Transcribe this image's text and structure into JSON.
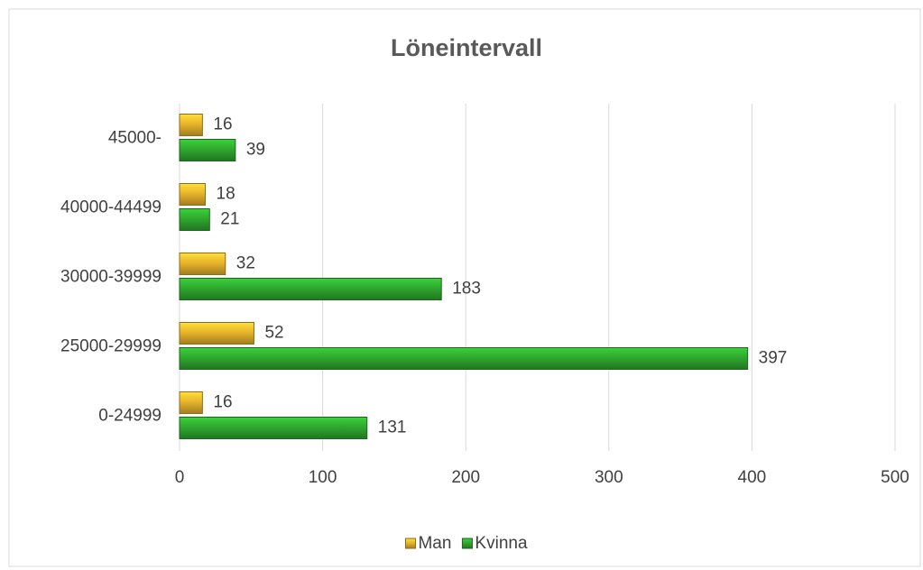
{
  "chart_data": {
    "type": "bar",
    "orientation": "horizontal",
    "title": "Löneintervall",
    "categories": [
      "45000-",
      "40000-44499",
      "30000-39999",
      "25000-29999",
      "0-24999"
    ],
    "series": [
      {
        "name": "Man",
        "color": "#e8b42c",
        "values": [
          16,
          18,
          32,
          52,
          16
        ]
      },
      {
        "name": "Kvinna",
        "color": "#2fa82f",
        "values": [
          39,
          21,
          183,
          397,
          131
        ]
      }
    ],
    "xlim": [
      0,
      500
    ],
    "xticks": [
      0,
      100,
      200,
      300,
      400,
      500
    ],
    "grid": true,
    "legend": "bottom"
  }
}
